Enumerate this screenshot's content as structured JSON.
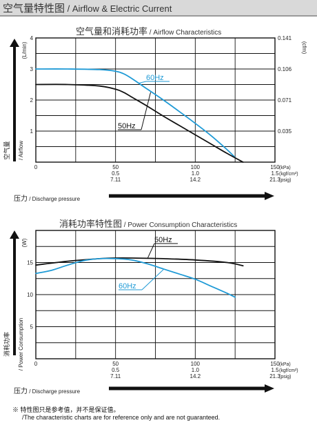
{
  "header": {
    "title_cn": "空气量特性图",
    "title_en": " / Airflow & Electric Current"
  },
  "footnote": {
    "line1": "※ 特性图只是参考值，并不是保证值。",
    "line2": "/The characteristic charts are for reference only and are not guaranteed."
  },
  "chart_data": [
    {
      "type": "line",
      "title": "空气量和消耗功率",
      "subtitle": " / Airflow Characteristics",
      "ylabel": "空气量",
      "ylabel_en": "/ Airflow",
      "yunit_left": "(L/min)",
      "yunit_right": "(cfm)",
      "xlabel": "压力",
      "xlabel_en": " / Discharge pressure",
      "xlim": [
        0,
        150
      ],
      "ylim": [
        0,
        4
      ],
      "x_ticks": [
        {
          "kpa": "0",
          "kgf": "",
          "psig": ""
        },
        {
          "kpa": "50",
          "kgf": "0.5",
          "psig": "7.11"
        },
        {
          "kpa": "100",
          "kgf": "1.0",
          "psig": "14.2"
        },
        {
          "kpa": "150",
          "kgf": "1.5",
          "psig": "21.3"
        }
      ],
      "x_units": [
        "(kPa)",
        "(kgf/cm²)",
        "(psig)"
      ],
      "y_ticks": [
        "1",
        "2",
        "3",
        "4"
      ],
      "y_ticks_right": [
        "0.035",
        "0.071",
        "0.106",
        "0.141"
      ],
      "grid": true,
      "series": [
        {
          "name": "60Hz",
          "color": "#1e9ad6",
          "x": [
            0,
            20,
            40,
            50,
            55,
            60,
            70,
            80,
            90,
            100,
            110,
            120,
            125
          ],
          "y": [
            3.0,
            3.0,
            2.98,
            2.93,
            2.85,
            2.7,
            2.35,
            2.0,
            1.63,
            1.25,
            0.85,
            0.4,
            0.15
          ]
        },
        {
          "name": "50Hz",
          "color": "#111111",
          "x": [
            0,
            20,
            40,
            50,
            55,
            60,
            70,
            80,
            90,
            100,
            110,
            120,
            130
          ],
          "y": [
            2.5,
            2.5,
            2.45,
            2.35,
            2.25,
            2.1,
            1.8,
            1.48,
            1.18,
            0.88,
            0.58,
            0.28,
            0.0
          ]
        }
      ]
    },
    {
      "type": "line",
      "title": "消耗功率特性图",
      "subtitle": " / Power Consumption Characteristics",
      "ylabel": "消耗功率",
      "ylabel_en": "/ Power Consumption",
      "yunit_left": "(W)",
      "xlabel": "压力",
      "xlabel_en": " / Discharge pressure",
      "xlim": [
        0,
        150
      ],
      "ylim": [
        0,
        20
      ],
      "x_ticks": [
        {
          "kpa": "0",
          "kgf": "",
          "psig": ""
        },
        {
          "kpa": "50",
          "kgf": "0.5",
          "psig": "7.11"
        },
        {
          "kpa": "100",
          "kgf": "1.0",
          "psig": "14.2"
        },
        {
          "kpa": "150",
          "kgf": "1.5",
          "psig": "21.3"
        }
      ],
      "x_units": [
        "(kPa)",
        "(kgf/cm²)",
        "(psig)"
      ],
      "y_ticks": [
        "5",
        "10",
        "15"
      ],
      "grid": true,
      "series": [
        {
          "name": "50Hz",
          "color": "#111111",
          "x": [
            0,
            20,
            40,
            50,
            60,
            80,
            100,
            120,
            130
          ],
          "y": [
            14.6,
            15.2,
            15.6,
            15.7,
            15.7,
            15.6,
            15.4,
            15.0,
            14.5
          ]
        },
        {
          "name": "60Hz",
          "color": "#1e9ad6",
          "x": [
            0,
            10,
            20,
            30,
            40,
            50,
            60,
            70,
            80,
            90,
            100,
            110,
            120,
            125
          ],
          "y": [
            13.3,
            13.8,
            14.6,
            15.3,
            15.6,
            15.6,
            15.4,
            14.8,
            14.0,
            13.2,
            12.4,
            11.3,
            10.2,
            9.6
          ]
        }
      ]
    }
  ]
}
